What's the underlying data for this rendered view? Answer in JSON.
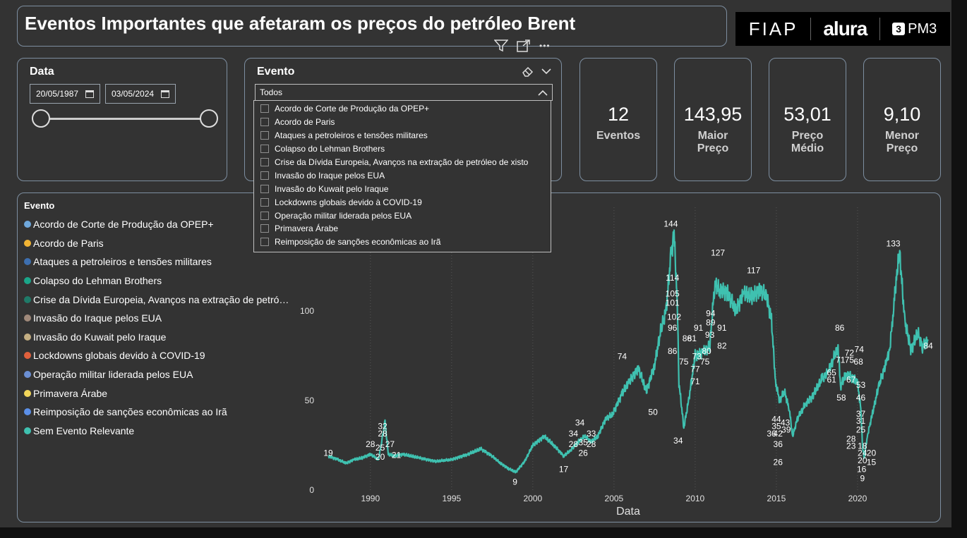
{
  "title": "Eventos Importantes que afetaram os preços do petróleo Brent",
  "logos": {
    "fiap": "FIAP",
    "alura": "alura",
    "pm3": "PM3",
    "pm3_mark": "3"
  },
  "toolbar": {
    "icons": [
      "filter-icon",
      "focus-mode-icon",
      "more-options-icon"
    ],
    "more_glyph": "•••"
  },
  "date_filter": {
    "label": "Data",
    "start": "20/05/1987",
    "end": "03/05/2024"
  },
  "event_filter": {
    "label": "Evento",
    "selected": "Todos",
    "options": [
      "Acordo de Corte de Produção da OPEP+",
      "Acordo de Paris",
      "Ataques a petroleiros e tensões militares",
      "Colapso do Lehman Brothers",
      "Crise da Dívida Europeia, Avanços na extração de petróleo de xisto",
      "Invasão do Iraque pelos EUA",
      "Invasão do Kuwait pelo Iraque",
      "Lockdowns globais devido à COVID-19",
      "Operação militar liderada pelos EUA",
      "Primavera Árabe",
      "Reimposição de sanções econômicas ao Irã"
    ]
  },
  "kpis": [
    {
      "value": "12",
      "label1": "Eventos",
      "label2": ""
    },
    {
      "value": "143,95",
      "label1": "Maior",
      "label2": "Preço"
    },
    {
      "value": "53,01",
      "label1": "Preço",
      "label2": "Médio"
    },
    {
      "value": "9,10",
      "label1": "Menor",
      "label2": "Preço"
    }
  ],
  "legend": {
    "title": "Evento",
    "items": [
      {
        "label": "Acordo de Corte de Produção da OPEP+",
        "color": "#6fa8dc"
      },
      {
        "label": "Acordo de Paris",
        "color": "#f1b434"
      },
      {
        "label": "Ataques a petroleiros e tensões militares",
        "color": "#3d6fb0"
      },
      {
        "label": "Colapso do Lehman Brothers",
        "color": "#1aa689"
      },
      {
        "label": "Crise da Dívida Europeia, Avanços na extração de petró…",
        "color": "#1f7a68"
      },
      {
        "label": "Invasão do Iraque pelos EUA",
        "color": "#a0897a"
      },
      {
        "label": "Invasão do Kuwait pelo Iraque",
        "color": "#c4ae82"
      },
      {
        "label": "Lockdowns globais devido à COVID-19",
        "color": "#e0603c"
      },
      {
        "label": "Operação militar liderada pelos EUA",
        "color": "#6b8fd4"
      },
      {
        "label": "Primavera Árabe",
        "color": "#f2d65a"
      },
      {
        "label": "Reimposição de sanções econômicas ao Irã",
        "color": "#5b8fe8"
      },
      {
        "label": "Sem Evento Relevante",
        "color": "#3fc1b0"
      }
    ]
  },
  "chart_data": {
    "type": "line",
    "xlabel": "Data",
    "ylabel": "",
    "x_ticks": [
      "1990",
      "1995",
      "2000",
      "2005",
      "2010",
      "2015",
      "2020"
    ],
    "y_ticks": [
      "0",
      "50",
      "100"
    ],
    "xlim": [
      1987.4,
      2024.35
    ],
    "ylim": [
      0,
      150
    ],
    "series": [
      {
        "color": "#3fc1b0",
        "x": [
          1987.4,
          1988.0,
          1988.5,
          1989.0,
          1989.5,
          1990.0,
          1990.5,
          1990.75,
          1990.9,
          1991.1,
          1991.5,
          1992,
          1993,
          1994,
          1995,
          1996,
          1996.8,
          1997.5,
          1998.0,
          1998.5,
          1998.95,
          1999.5,
          2000.0,
          2000.7,
          2001.3,
          2001.9,
          2002.3,
          2002.8,
          2003.2,
          2003.6,
          2004.0,
          2004.5,
          2004.9,
          2005.5,
          2005.9,
          2006.5,
          2007.0,
          2007.5,
          2007.9,
          2008.2,
          2008.5,
          2008.7,
          2008.9,
          2009.0,
          2009.3,
          2009.6,
          2010.0,
          2010.5,
          2010.9,
          2011.2,
          2011.5,
          2012.0,
          2012.5,
          2013.0,
          2013.5,
          2014.0,
          2014.4,
          2014.7,
          2014.95,
          2015.2,
          2015.5,
          2015.8,
          2016.0,
          2016.3,
          2016.8,
          2017.2,
          2017.8,
          2018.2,
          2018.8,
          2018.95,
          2019.3,
          2019.8,
          2020.0,
          2020.2,
          2020.3,
          2020.4,
          2020.6,
          2020.9,
          2021.3,
          2021.8,
          2022.0,
          2022.2,
          2022.4,
          2022.6,
          2022.9,
          2023.3,
          2023.7,
          2024.0,
          2024.35
        ],
        "y": [
          19,
          17,
          15,
          17,
          18,
          20,
          17,
          30,
          38,
          20,
          19,
          20,
          18,
          16,
          17,
          20,
          23,
          19,
          15,
          12,
          10,
          16,
          25,
          30,
          25,
          19,
          22,
          27,
          30,
          27,
          30,
          40,
          42,
          54,
          60,
          68,
          55,
          70,
          90,
          100,
          130,
          143,
          105,
          60,
          35,
          50,
          75,
          77,
          80,
          115,
          112,
          110,
          100,
          110,
          108,
          112,
          108,
          95,
          60,
          50,
          55,
          45,
          30,
          40,
          48,
          52,
          62,
          66,
          80,
          58,
          65,
          62,
          60,
          45,
          25,
          18,
          30,
          42,
          58,
          72,
          80,
          100,
          120,
          132,
          95,
          78,
          88,
          80,
          84
        ]
      }
    ],
    "annotations": [
      {
        "x": 1987.4,
        "y": 19,
        "text": "19"
      },
      {
        "x": 1990.0,
        "y": 24,
        "text": "28"
      },
      {
        "x": 1990.6,
        "y": 17,
        "text": "20"
      },
      {
        "x": 1990.6,
        "y": 22,
        "text": "25"
      },
      {
        "x": 1990.75,
        "y": 30,
        "text": "28"
      },
      {
        "x": 1990.75,
        "y": 34,
        "text": "32"
      },
      {
        "x": 1991.2,
        "y": 24,
        "text": "27"
      },
      {
        "x": 1991.6,
        "y": 18,
        "text": "21"
      },
      {
        "x": 1998.9,
        "y": 3,
        "text": "9"
      },
      {
        "x": 2001.9,
        "y": 10,
        "text": "17"
      },
      {
        "x": 2002.5,
        "y": 24,
        "text": "28"
      },
      {
        "x": 2002.5,
        "y": 30,
        "text": "34"
      },
      {
        "x": 2002.9,
        "y": 36,
        "text": "34"
      },
      {
        "x": 2003.1,
        "y": 25,
        "text": "35"
      },
      {
        "x": 2003.1,
        "y": 19,
        "text": "26"
      },
      {
        "x": 2003.6,
        "y": 24,
        "text": "28"
      },
      {
        "x": 2003.6,
        "y": 30,
        "text": "33"
      },
      {
        "x": 2005.5,
        "y": 73,
        "text": "74"
      },
      {
        "x": 2007.4,
        "y": 42,
        "text": "50"
      },
      {
        "x": 2008.5,
        "y": 147,
        "text": "144"
      },
      {
        "x": 2008.6,
        "y": 117,
        "text": "114"
      },
      {
        "x": 2008.6,
        "y": 108,
        "text": "105"
      },
      {
        "x": 2008.6,
        "y": 103,
        "text": "101"
      },
      {
        "x": 2008.7,
        "y": 95,
        "text": "102"
      },
      {
        "x": 2008.6,
        "y": 89,
        "text": "96"
      },
      {
        "x": 2008.6,
        "y": 76,
        "text": "86"
      },
      {
        "x": 2008.95,
        "y": 26,
        "text": "34"
      },
      {
        "x": 2009.3,
        "y": 70,
        "text": "75"
      },
      {
        "x": 2009.5,
        "y": 83,
        "text": "86"
      },
      {
        "x": 2009.8,
        "y": 83,
        "text": "81"
      },
      {
        "x": 2010.2,
        "y": 89,
        "text": "91"
      },
      {
        "x": 2010.1,
        "y": 73,
        "text": "73"
      },
      {
        "x": 2010.0,
        "y": 66,
        "text": "77"
      },
      {
        "x": 2010.0,
        "y": 59,
        "text": "71"
      },
      {
        "x": 2010.6,
        "y": 70,
        "text": "75"
      },
      {
        "x": 2010.7,
        "y": 76,
        "text": "80"
      },
      {
        "x": 2010.9,
        "y": 85,
        "text": "93"
      },
      {
        "x": 2010.95,
        "y": 92,
        "text": "89"
      },
      {
        "x": 2010.95,
        "y": 97,
        "text": "94"
      },
      {
        "x": 2011.65,
        "y": 89,
        "text": "91"
      },
      {
        "x": 2011.65,
        "y": 79,
        "text": "82"
      },
      {
        "x": 2011.4,
        "y": 131,
        "text": "127"
      },
      {
        "x": 2013.6,
        "y": 121,
        "text": "117"
      },
      {
        "x": 2014.7,
        "y": 30,
        "text": "36"
      },
      {
        "x": 2015.0,
        "y": 38,
        "text": "44"
      },
      {
        "x": 2015.0,
        "y": 34,
        "text": "35"
      },
      {
        "x": 2015.1,
        "y": 30,
        "text": "42"
      },
      {
        "x": 2015.6,
        "y": 32,
        "text": "39"
      },
      {
        "x": 2015.55,
        "y": 36,
        "text": "43"
      },
      {
        "x": 2015.1,
        "y": 24,
        "text": "36"
      },
      {
        "x": 2015.1,
        "y": 14,
        "text": "26"
      },
      {
        "x": 2018.9,
        "y": 89,
        "text": "86"
      },
      {
        "x": 2018.4,
        "y": 64,
        "text": "65"
      },
      {
        "x": 2018.4,
        "y": 60,
        "text": "61"
      },
      {
        "x": 2018.95,
        "y": 71,
        "text": "71"
      },
      {
        "x": 2019.0,
        "y": 50,
        "text": "58"
      },
      {
        "x": 2019.5,
        "y": 75,
        "text": "72"
      },
      {
        "x": 2019.5,
        "y": 71,
        "text": "75"
      },
      {
        "x": 2019.6,
        "y": 60,
        "text": "67"
      },
      {
        "x": 2020.1,
        "y": 77,
        "text": "74"
      },
      {
        "x": 2020.05,
        "y": 70,
        "text": "68"
      },
      {
        "x": 2020.2,
        "y": 57,
        "text": "53"
      },
      {
        "x": 2020.2,
        "y": 50,
        "text": "46"
      },
      {
        "x": 2020.2,
        "y": 41,
        "text": "37"
      },
      {
        "x": 2020.2,
        "y": 37,
        "text": "31"
      },
      {
        "x": 2020.2,
        "y": 32,
        "text": "25"
      },
      {
        "x": 2019.6,
        "y": 27,
        "text": "28"
      },
      {
        "x": 2019.6,
        "y": 23,
        "text": "23"
      },
      {
        "x": 2020.3,
        "y": 23,
        "text": "18"
      },
      {
        "x": 2020.3,
        "y": 19,
        "text": "24"
      },
      {
        "x": 2020.3,
        "y": 15,
        "text": "20"
      },
      {
        "x": 2020.25,
        "y": 10,
        "text": "16"
      },
      {
        "x": 2020.3,
        "y": 5,
        "text": "9"
      },
      {
        "x": 2020.85,
        "y": 19,
        "text": "20"
      },
      {
        "x": 2020.85,
        "y": 14,
        "text": "15"
      },
      {
        "x": 2022.2,
        "y": 136,
        "text": "133"
      },
      {
        "x": 2024.35,
        "y": 79,
        "text": "84"
      }
    ]
  }
}
